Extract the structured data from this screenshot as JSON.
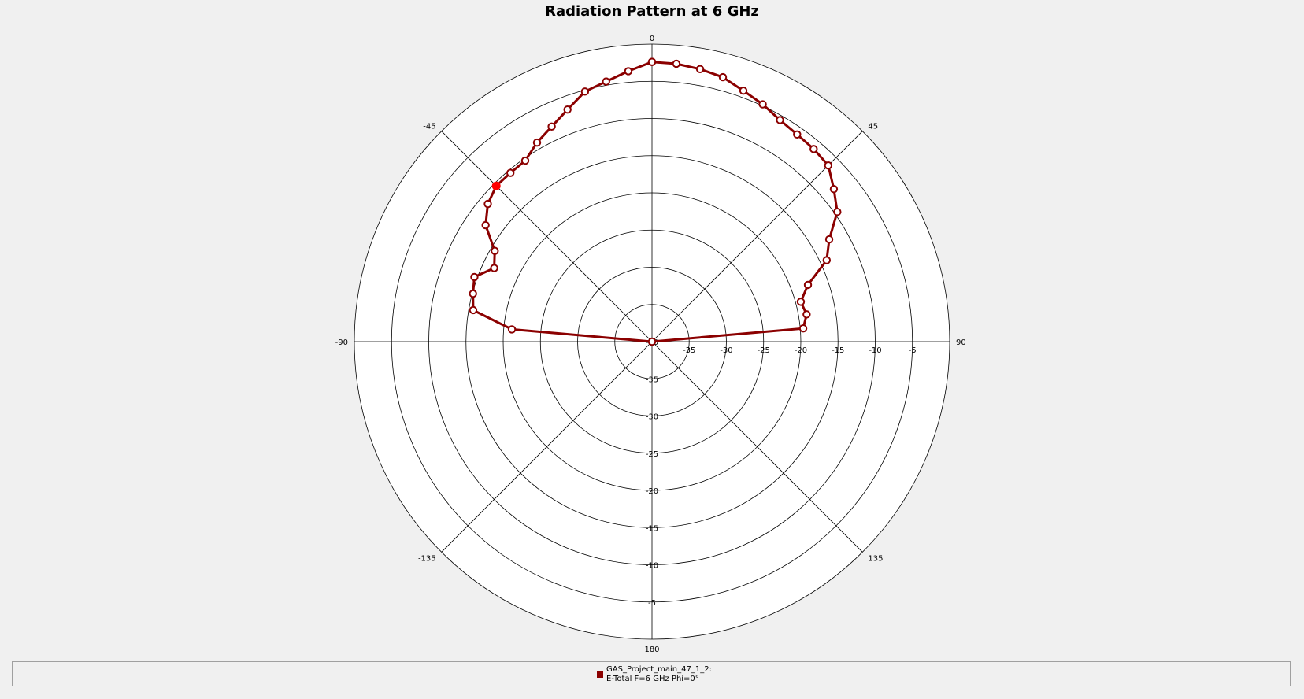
{
  "chart_data": {
    "type": "polar-line",
    "title": "Radiation Pattern at 6 GHz",
    "angle_ticks": [
      "0",
      "45",
      "90",
      "135",
      "180",
      "-135",
      "-90",
      "-45"
    ],
    "radial_range": [
      -40,
      0
    ],
    "radial_tick_labels": [
      "-35",
      "-30",
      "-25",
      "-20",
      "-15",
      "-10",
      "-5"
    ],
    "grid": true,
    "legend_placement": "bottom",
    "series": [
      {
        "name": "GAS_Project_main_47_1_2:",
        "description": "E-Total  F=6 GHz  Phi=0°",
        "color": "#8b0000",
        "theta": [
          0,
          5,
          10,
          15,
          20,
          25,
          30,
          35,
          40,
          45,
          50,
          55,
          60,
          65,
          70,
          75,
          80,
          85,
          90,
          -85,
          -80,
          -75,
          -70,
          -65,
          -60,
          -55,
          -50,
          -45,
          -40,
          -35,
          -30,
          -25,
          -20,
          -15,
          -10,
          -5,
          0
        ],
        "values": [
          -2.4,
          -2.5,
          -2.8,
          -3.2,
          -4.1,
          -4.8,
          -5.6,
          -6.0,
          -6.2,
          -6.5,
          -8.1,
          -9.6,
          -12.5,
          -14.1,
          -17.7,
          -19.3,
          -18.9,
          -19.6,
          -40,
          -21.1,
          -15.6,
          -15.1,
          -14.6,
          -16.6,
          -15.6,
          -12.7,
          -11.2,
          -10.4,
          -10.4,
          -10.3,
          -9.1,
          -8.1,
          -6.8,
          -5.2,
          -4.5,
          -3.5,
          -2.4
        ],
        "highlight": {
          "theta": -45,
          "value": -10.4,
          "color": "#ff0000"
        }
      }
    ]
  },
  "legend": {
    "line1": "GAS_Project_main_47_1_2:",
    "line2": "E-Total  F=6 GHz  Phi=0°",
    "color": "#8b0000"
  }
}
